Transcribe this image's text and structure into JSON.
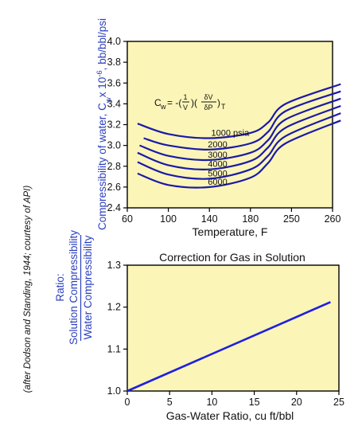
{
  "credit_text": "(after Dodson and Standing, 1944; courtesy of API)",
  "colors": {
    "plot_bg": "#fbf5b8",
    "curve": "#1a1aa8",
    "line": "#1f1fe0",
    "ylabel": "#2a3fbf"
  },
  "chart_data": [
    {
      "type": "line",
      "ylabel_text": "Compressibility of water, C",
      "ylabel_sub": "w",
      "ylabel_tail": "x 10",
      "ylabel_sup": "-6",
      "ylabel_units": ", bb/bbl/psi",
      "xlabel": "Temperature, F",
      "x_ticks": [
        "60",
        "100",
        "140",
        "180",
        "250",
        "260"
      ],
      "y_ticks": [
        "2.4",
        "2.6",
        "2.8",
        "3.0",
        "3.2",
        "3.4",
        "3.6",
        "3.8",
        "4.0"
      ],
      "ylim": [
        2.4,
        4.0
      ],
      "grid": false,
      "formula": {
        "c": "C",
        "sub": "w",
        "eq": "= -(",
        "one": "1",
        "v": "V",
        "mid": ")(",
        "dv": "δV",
        "dp": "δP",
        "end": ")",
        "t": "T"
      },
      "series": [
        {
          "name": "1000 psia",
          "values": [
            [
              70,
              3.21
            ],
            [
              100,
              3.11
            ],
            [
              140,
              3.07
            ],
            [
              180,
              3.12
            ],
            [
              210,
              3.22
            ],
            [
              240,
              3.4
            ],
            [
              262,
              3.59
            ]
          ]
        },
        {
          "name": "2000",
          "values": [
            [
              76,
              3.07
            ],
            [
              100,
              3.0
            ],
            [
              140,
              2.96
            ],
            [
              180,
              3.02
            ],
            [
              210,
              3.13
            ],
            [
              240,
              3.33
            ],
            [
              262,
              3.52
            ]
          ]
        },
        {
          "name": "3000",
          "values": [
            [
              72,
              3.0
            ],
            [
              100,
              2.9
            ],
            [
              140,
              2.86
            ],
            [
              180,
              2.93
            ],
            [
              210,
              3.05
            ],
            [
              240,
              3.25
            ],
            [
              262,
              3.45
            ]
          ]
        },
        {
          "name": "4000",
          "values": [
            [
              70,
              2.93
            ],
            [
              100,
              2.81
            ],
            [
              140,
              2.77
            ],
            [
              180,
              2.85
            ],
            [
              210,
              2.98
            ],
            [
              240,
              3.17
            ],
            [
              262,
              3.38
            ]
          ]
        },
        {
          "name": "5000",
          "values": [
            [
              70,
              2.84
            ],
            [
              100,
              2.72
            ],
            [
              140,
              2.68
            ],
            [
              180,
              2.77
            ],
            [
              210,
              2.9
            ],
            [
              240,
              3.09
            ],
            [
              262,
              3.31
            ]
          ]
        },
        {
          "name": "6000",
          "values": [
            [
              70,
              2.73
            ],
            [
              100,
              2.62
            ],
            [
              140,
              2.6
            ],
            [
              180,
              2.69
            ],
            [
              210,
              2.83
            ],
            [
              240,
              3.02
            ],
            [
              262,
              3.24
            ]
          ]
        }
      ]
    },
    {
      "type": "line",
      "title": "Correction for Gas in Solution",
      "ylabel_top": "Ratio:",
      "ylabel_num": "Solution Compressibility",
      "ylabel_den": "Water Compressibility",
      "xlabel": "Gas-Water Ratio, cu ft/bbl",
      "x_ticks": [
        "0",
        "5",
        "10",
        "15",
        "20",
        "25"
      ],
      "y_ticks": [
        "1.0",
        "1.1",
        "1.2",
        "1.3"
      ],
      "xlim": [
        0,
        25
      ],
      "ylim": [
        1.0,
        1.3
      ],
      "grid": false,
      "series": [
        {
          "values": [
            [
              0,
              1.0
            ],
            [
              24,
              1.212
            ]
          ]
        }
      ]
    }
  ]
}
